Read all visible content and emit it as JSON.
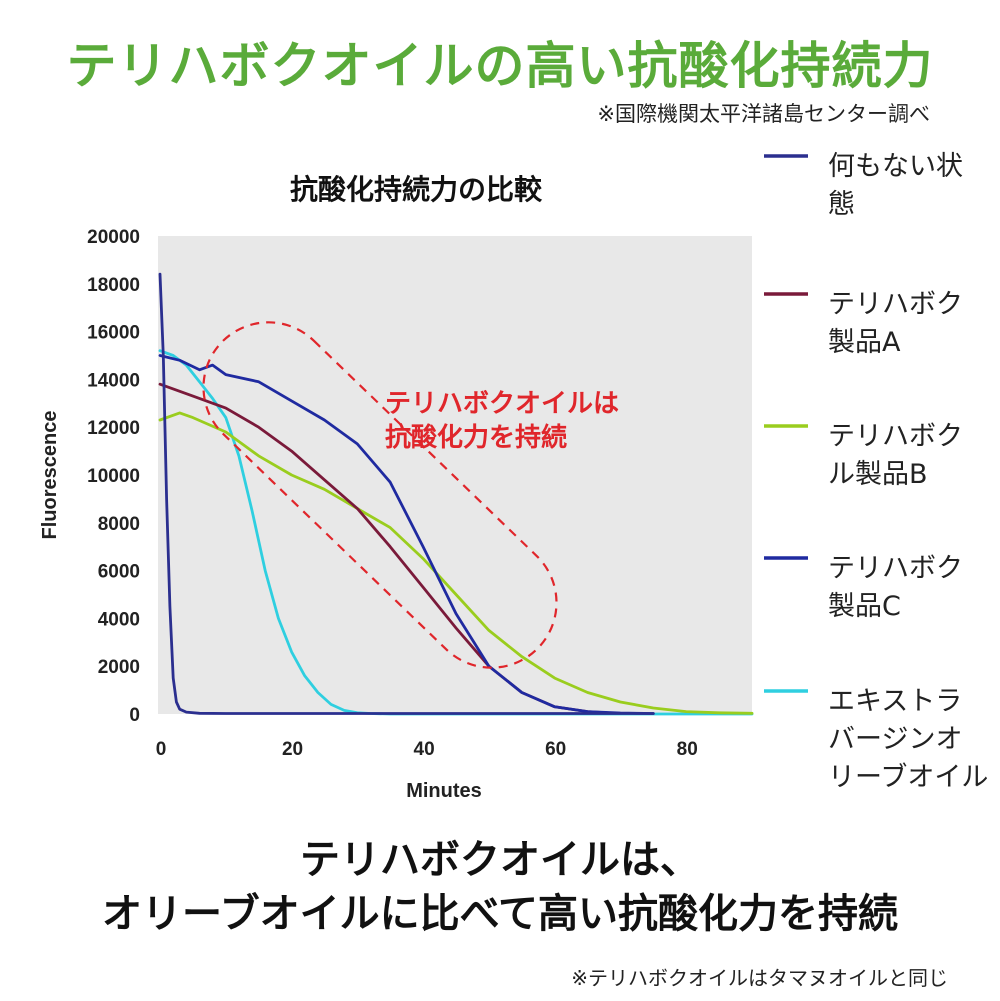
{
  "title": "テリハボクオイルの高い抗酸化持続力",
  "source_note": "※国際機関太平洋諸島センター調べ",
  "conclusion": {
    "line1": "テリハボクオイルは、",
    "line2": "オリーブオイルに比べて高い抗酸化力を持続"
  },
  "footnote": "※テリハボクオイルはタマヌオイルと同じ",
  "chart_data": {
    "type": "line",
    "title": "抗酸化持続力の比較",
    "xlabel": "Minutes",
    "ylabel": "Fluorescence",
    "xlim": [
      0,
      90
    ],
    "ylim": [
      0,
      20000
    ],
    "xticks": [
      0,
      20,
      40,
      60,
      80
    ],
    "yticks": [
      0,
      2000,
      4000,
      6000,
      8000,
      10000,
      12000,
      14000,
      16000,
      18000,
      20000
    ],
    "grid": false,
    "legend_position": "right",
    "annotation": {
      "line1": "テリハボクオイルは",
      "line2": "抗酸化力を持続",
      "color": "#e0262b"
    },
    "series": [
      {
        "name": "何もない状態",
        "label_lines": [
          "何もない状",
          "態"
        ],
        "color": "#2b2f8f",
        "x": [
          0,
          0.5,
          1,
          1.5,
          2,
          2.5,
          3,
          4,
          6,
          10,
          20,
          40,
          60,
          75
        ],
        "y": [
          18400,
          15000,
          9000,
          4500,
          1500,
          500,
          200,
          80,
          30,
          20,
          20,
          20,
          20,
          20
        ]
      },
      {
        "name": "テリハボク製品A",
        "label_lines": [
          "テリハボク",
          "製品A"
        ],
        "color": "#7a1a3a",
        "x": [
          0,
          5,
          10,
          15,
          20,
          25,
          30,
          35,
          40,
          45,
          50,
          55,
          60,
          65,
          68
        ],
        "y": [
          13800,
          13300,
          12800,
          12000,
          11000,
          9800,
          8600,
          7000,
          5300,
          3600,
          2000,
          900,
          300,
          100,
          50
        ]
      },
      {
        "name": "テリハボクル製品B",
        "label_lines": [
          "テリハボク",
          "ル製品B"
        ],
        "color": "#9acd1e",
        "x": [
          0,
          3,
          5,
          10,
          15,
          20,
          25,
          30,
          35,
          40,
          45,
          50,
          55,
          60,
          65,
          70,
          75,
          80,
          85,
          90
        ],
        "y": [
          12300,
          12600,
          12400,
          11800,
          10800,
          10000,
          9400,
          8600,
          7800,
          6500,
          5000,
          3500,
          2400,
          1500,
          900,
          500,
          250,
          100,
          50,
          30
        ]
      },
      {
        "name": "テリハボク製品C",
        "label_lines": [
          "テリハボク",
          "製品C"
        ],
        "color": "#1f2aa0",
        "x": [
          0,
          3,
          6,
          8,
          10,
          15,
          20,
          25,
          30,
          35,
          40,
          45,
          50,
          55,
          60,
          65,
          70,
          75
        ],
        "y": [
          15000,
          14800,
          14400,
          14600,
          14200,
          13900,
          13100,
          12300,
          11300,
          9700,
          7000,
          4200,
          2000,
          900,
          300,
          100,
          40,
          20
        ]
      },
      {
        "name": "エキストラバージンオリーブオイル",
        "label_lines": [
          "エキストラ",
          "バージンオ",
          "リーブオイル"
        ],
        "color": "#2fcfe0",
        "x": [
          0,
          2,
          4,
          6,
          8,
          10,
          12,
          14,
          16,
          18,
          20,
          22,
          24,
          26,
          28,
          30,
          32,
          35,
          40,
          50,
          70,
          90
        ],
        "y": [
          15200,
          15000,
          14600,
          13900,
          13200,
          12400,
          10800,
          8500,
          6000,
          4000,
          2600,
          1600,
          900,
          400,
          150,
          50,
          20,
          0,
          0,
          0,
          0,
          0
        ]
      }
    ]
  }
}
